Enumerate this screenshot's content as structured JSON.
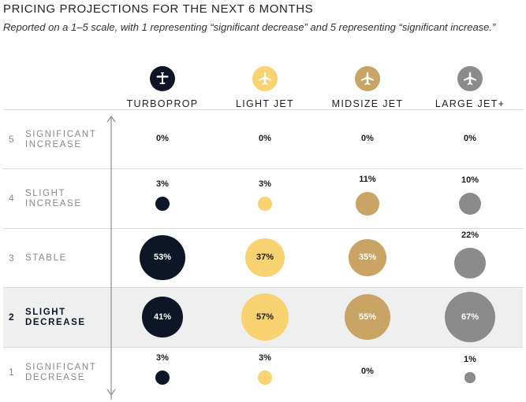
{
  "header": {
    "title": "PRICING PROJECTIONS FOR THE NEXT 6 MONTHS",
    "subtitle": "Reported on a 1–5 scale, with 1 representing “significant decrease” and 5 representing “significant increase.”"
  },
  "colors": {
    "turboprop": "#0e1526",
    "light_jet": "#f9d271",
    "midsize_jet": "#c9a465",
    "large_jet": "#8b8b8b",
    "highlight_row": "#efefef"
  },
  "chart_data": {
    "type": "bubble-table",
    "title": "PRICING PROJECTIONS FOR THE NEXT 6 MONTHS",
    "categories": [
      {
        "key": "turboprop",
        "label": "TURBOPROP",
        "icon": "turboprop-plane-icon"
      },
      {
        "key": "light_jet",
        "label": "LIGHT JET",
        "icon": "light-jet-plane-icon"
      },
      {
        "key": "midsize_jet",
        "label": "MIDSIZE JET",
        "icon": "midsize-jet-plane-icon"
      },
      {
        "key": "large_jet",
        "label": "LARGE JET+",
        "icon": "large-jet-plane-icon"
      }
    ],
    "rows": [
      {
        "scale": "5",
        "label_lines": [
          "SIGNIFICANT",
          "INCREASE"
        ],
        "highlight": false,
        "values": [
          0,
          0,
          0,
          0
        ],
        "labels": [
          "0%",
          "0%",
          "0%",
          "0%"
        ]
      },
      {
        "scale": "4",
        "label_lines": [
          "SLIGHT",
          "INCREASE"
        ],
        "highlight": false,
        "values": [
          3,
          3,
          11,
          10
        ],
        "labels": [
          "3%",
          "3%",
          "11%",
          "10%"
        ]
      },
      {
        "scale": "3",
        "label_lines": [
          "STABLE"
        ],
        "highlight": false,
        "values": [
          53,
          37,
          35,
          22
        ],
        "labels": [
          "53%",
          "37%",
          "35%",
          "22%"
        ]
      },
      {
        "scale": "2",
        "label_lines": [
          "SLIGHT",
          "DECREASE"
        ],
        "highlight": true,
        "values": [
          41,
          57,
          55,
          67
        ],
        "labels": [
          "41%",
          "57%",
          "55%",
          "67%"
        ]
      },
      {
        "scale": "1",
        "label_lines": [
          "SIGNIFICANT",
          "DECREASE"
        ],
        "highlight": false,
        "values": [
          3,
          3,
          0,
          1
        ],
        "labels": [
          "3%",
          "3%",
          "0%",
          "1%"
        ]
      }
    ]
  }
}
